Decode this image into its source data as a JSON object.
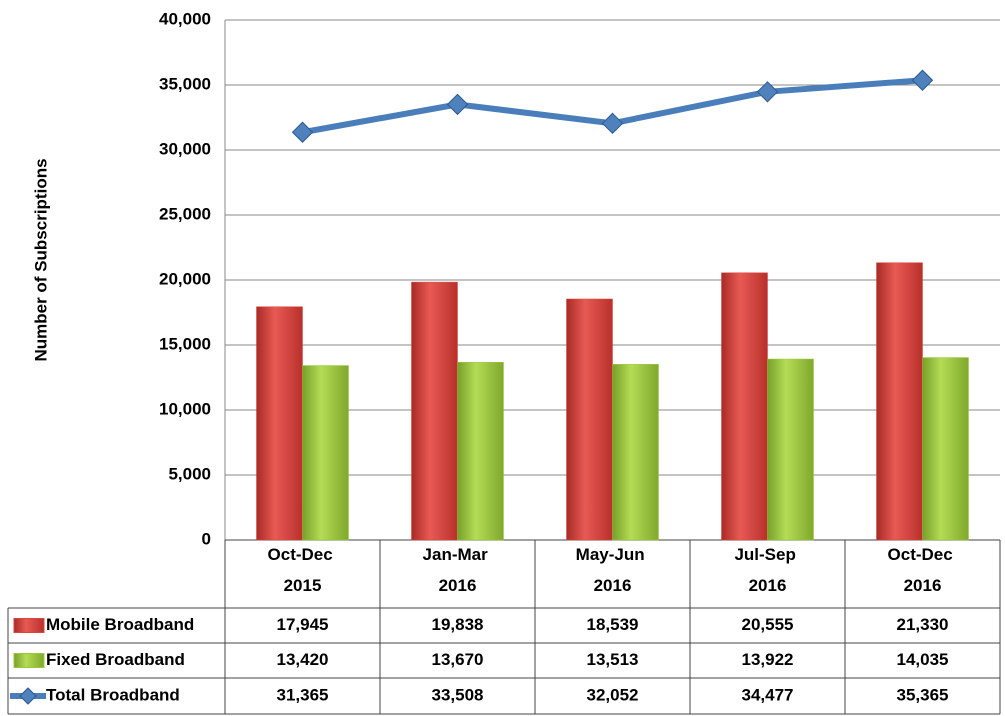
{
  "chart_data": {
    "type": "bar",
    "y_axis_label": "Number of Subscriptions",
    "categories": [
      "Oct-Dec 2015",
      "Jan-Mar 2016",
      "May-Jun 2016",
      "Jul-Sep 2016",
      "Oct-Dec 2016"
    ],
    "series": [
      {
        "name": "Mobile Broadband",
        "type": "bar",
        "color": "#d9453f",
        "values": [
          17945,
          19838,
          18539,
          20555,
          21330
        ],
        "value_labels": [
          "17,945",
          "19,838",
          "18,539",
          "20,555",
          "21,330"
        ]
      },
      {
        "name": "Fixed Broadband",
        "type": "bar",
        "color": "#9bc83a",
        "values": [
          13420,
          13670,
          13513,
          13922,
          14035
        ],
        "value_labels": [
          "13,420",
          "13,670",
          "13,513",
          "13,922",
          "14,035"
        ]
      },
      {
        "name": "Total Broadband",
        "type": "line",
        "color": "#4a7ebb",
        "values": [
          31365,
          33508,
          32052,
          34477,
          35365
        ],
        "value_labels": [
          "31,365",
          "33,508",
          "32,052",
          "34,477",
          "35,365"
        ]
      }
    ],
    "ylim": [
      0,
      40000
    ],
    "yticks": [
      0,
      {
        "value": 5000,
        "label": "5,000"
      },
      {
        "value": 10000,
        "label": "10,000"
      },
      {
        "value": 15000,
        "label": "15,000"
      },
      {
        "value": 20000,
        "label": "20,000"
      },
      {
        "value": 25000,
        "label": "25,000"
      },
      {
        "value": 30000,
        "label": "30,000"
      },
      {
        "value": 35000,
        "label": "35,000"
      },
      {
        "value": 40000,
        "label": "40,000"
      }
    ],
    "grid": true,
    "data_table": true
  }
}
